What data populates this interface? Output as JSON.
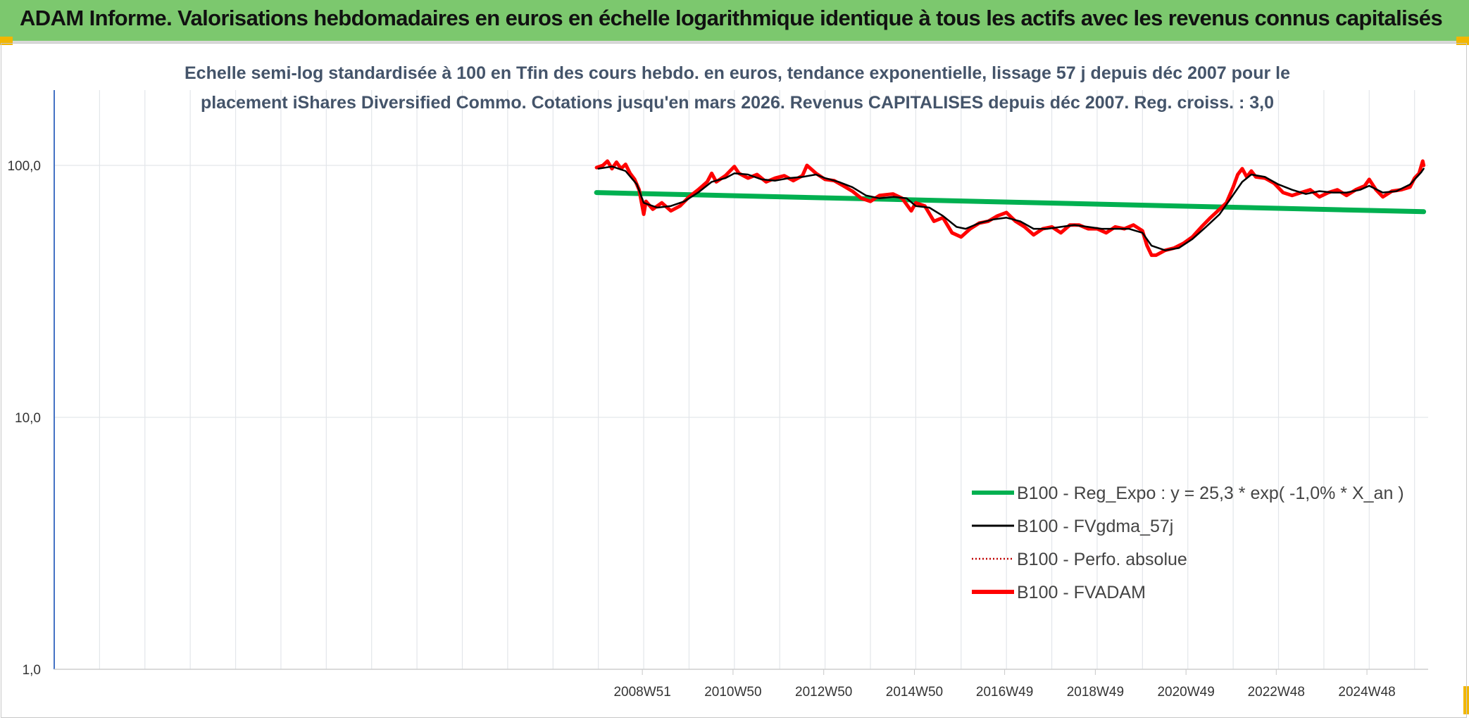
{
  "header": {
    "title": "ADAM Informe. Valorisations hebdomadaires en euros en échelle logarithmique identique à tous les actifs avec les revenus connus capitalisés"
  },
  "colors": {
    "banner": "#7cc86e",
    "corner_accent": "#f2b600",
    "reg_expo": "#00b050",
    "fvgdma": "#000000",
    "perfo": "#c00000",
    "fvadam": "#ff0000"
  },
  "chart_data": {
    "type": "line",
    "title_lines": [
      "Echelle semi-log standardisée à 100 en Tfin des cours hebdo. en euros, tendance exponentielle, lissage 57 j depuis déc 2007 pour le",
      "placement iShares Diversified Commo. Cotations jusqu'en mars 2026. Revenus CAPITALISES depuis déc 2007. Reg. croiss. : 3,0"
    ],
    "y_scale": "log",
    "ylim": [
      1,
      200
    ],
    "y_ticks": [
      "100,0",
      "10,0",
      "1,0"
    ],
    "y_tick_values": [
      100,
      10,
      1
    ],
    "x_range": [
      1996.0,
      2026.3
    ],
    "x_tick_labels": [
      "2008W51",
      "2010W50",
      "2012W50",
      "2014W50",
      "2016W49",
      "2018W49",
      "2020W49",
      "2022W48",
      "2024W48"
    ],
    "x_tick_values": [
      2008.97,
      2010.97,
      2012.97,
      2014.97,
      2016.96,
      2018.96,
      2020.96,
      2022.95,
      2024.95
    ],
    "x_gridlines": [
      1997,
      1998,
      1999,
      2000,
      2001,
      2002,
      2003,
      2004,
      2005,
      2006,
      2007,
      2008,
      2009,
      2010,
      2011,
      2012,
      2013,
      2014,
      2015,
      2016,
      2017,
      2018,
      2019,
      2020,
      2021,
      2022,
      2023,
      2024,
      2025,
      2026
    ],
    "grid": true,
    "legend_position": "bottom-right",
    "series": [
      {
        "name": "B100 - Reg_Expo : y = 25,3 * exp( -1,0% *  X_an )",
        "style": "thick-solid",
        "points": [
          [
            2007.96,
            78.0
          ],
          [
            2026.2,
            65.5
          ]
        ]
      },
      {
        "name": "B100 - FVgdma_57j",
        "style": "thin-solid",
        "points": [
          [
            2008.0,
            97
          ],
          [
            2008.3,
            99
          ],
          [
            2008.6,
            95
          ],
          [
            2008.85,
            84
          ],
          [
            2009.0,
            71
          ],
          [
            2009.3,
            68
          ],
          [
            2009.6,
            69
          ],
          [
            2009.9,
            72
          ],
          [
            2010.2,
            78
          ],
          [
            2010.5,
            86
          ],
          [
            2010.8,
            89
          ],
          [
            2011.0,
            93
          ],
          [
            2011.3,
            92
          ],
          [
            2011.6,
            88
          ],
          [
            2011.9,
            87
          ],
          [
            2012.2,
            89
          ],
          [
            2012.5,
            90
          ],
          [
            2012.8,
            92
          ],
          [
            2013.0,
            89
          ],
          [
            2013.3,
            86
          ],
          [
            2013.6,
            82
          ],
          [
            2013.9,
            76
          ],
          [
            2014.2,
            74
          ],
          [
            2014.5,
            75
          ],
          [
            2014.8,
            74
          ],
          [
            2015.0,
            69
          ],
          [
            2015.3,
            68
          ],
          [
            2015.6,
            63
          ],
          [
            2015.9,
            57
          ],
          [
            2016.1,
            56
          ],
          [
            2016.4,
            59
          ],
          [
            2016.7,
            61
          ],
          [
            2017.0,
            62
          ],
          [
            2017.3,
            60
          ],
          [
            2017.6,
            56
          ],
          [
            2017.9,
            56
          ],
          [
            2018.2,
            57
          ],
          [
            2018.5,
            58
          ],
          [
            2018.8,
            57
          ],
          [
            2019.1,
            56
          ],
          [
            2019.4,
            56
          ],
          [
            2019.7,
            56
          ],
          [
            2020.0,
            54
          ],
          [
            2020.2,
            48
          ],
          [
            2020.5,
            46
          ],
          [
            2020.8,
            47
          ],
          [
            2021.1,
            51
          ],
          [
            2021.4,
            57
          ],
          [
            2021.7,
            64
          ],
          [
            2021.9,
            72
          ],
          [
            2022.2,
            86
          ],
          [
            2022.4,
            92
          ],
          [
            2022.7,
            90
          ],
          [
            2023.0,
            84
          ],
          [
            2023.3,
            80
          ],
          [
            2023.6,
            77
          ],
          [
            2023.9,
            79
          ],
          [
            2024.2,
            78
          ],
          [
            2024.5,
            78
          ],
          [
            2024.8,
            80
          ],
          [
            2025.0,
            83
          ],
          [
            2025.3,
            78
          ],
          [
            2025.6,
            79
          ],
          [
            2025.9,
            84
          ],
          [
            2026.15,
            94
          ],
          [
            2026.2,
            97
          ]
        ]
      },
      {
        "name": "B100 - Perfo. absolue",
        "style": "dotted",
        "points": []
      },
      {
        "name": "B100 - FVADAM",
        "style": "thick-solid",
        "points": [
          [
            2007.96,
            98
          ],
          [
            2008.1,
            100
          ],
          [
            2008.2,
            104
          ],
          [
            2008.3,
            97
          ],
          [
            2008.4,
            103
          ],
          [
            2008.5,
            97
          ],
          [
            2008.6,
            101
          ],
          [
            2008.7,
            93
          ],
          [
            2008.8,
            88
          ],
          [
            2008.9,
            80
          ],
          [
            2009.0,
            64
          ],
          [
            2009.05,
            72
          ],
          [
            2009.2,
            67
          ],
          [
            2009.4,
            71
          ],
          [
            2009.6,
            66
          ],
          [
            2009.8,
            69
          ],
          [
            2010.0,
            75
          ],
          [
            2010.2,
            80
          ],
          [
            2010.4,
            86
          ],
          [
            2010.5,
            93
          ],
          [
            2010.6,
            86
          ],
          [
            2010.8,
            91
          ],
          [
            2011.0,
            99
          ],
          [
            2011.1,
            93
          ],
          [
            2011.3,
            89
          ],
          [
            2011.5,
            92
          ],
          [
            2011.7,
            86
          ],
          [
            2011.9,
            89
          ],
          [
            2012.1,
            91
          ],
          [
            2012.3,
            87
          ],
          [
            2012.5,
            91
          ],
          [
            2012.6,
            100
          ],
          [
            2012.8,
            93
          ],
          [
            2013.0,
            88
          ],
          [
            2013.2,
            87
          ],
          [
            2013.4,
            83
          ],
          [
            2013.6,
            79
          ],
          [
            2013.8,
            74
          ],
          [
            2014.0,
            72
          ],
          [
            2014.2,
            76
          ],
          [
            2014.5,
            77
          ],
          [
            2014.7,
            74
          ],
          [
            2014.9,
            66
          ],
          [
            2015.0,
            71
          ],
          [
            2015.2,
            69
          ],
          [
            2015.4,
            60
          ],
          [
            2015.6,
            62
          ],
          [
            2015.8,
            54
          ],
          [
            2016.0,
            52
          ],
          [
            2016.2,
            56
          ],
          [
            2016.4,
            59
          ],
          [
            2016.6,
            60
          ],
          [
            2016.8,
            63
          ],
          [
            2017.0,
            65
          ],
          [
            2017.2,
            60
          ],
          [
            2017.4,
            57
          ],
          [
            2017.6,
            53
          ],
          [
            2017.8,
            56
          ],
          [
            2018.0,
            57
          ],
          [
            2018.2,
            54
          ],
          [
            2018.4,
            58
          ],
          [
            2018.6,
            58
          ],
          [
            2018.8,
            56
          ],
          [
            2019.0,
            56
          ],
          [
            2019.2,
            54
          ],
          [
            2019.4,
            57
          ],
          [
            2019.6,
            56
          ],
          [
            2019.8,
            58
          ],
          [
            2020.0,
            55
          ],
          [
            2020.1,
            48
          ],
          [
            2020.2,
            44
          ],
          [
            2020.3,
            44
          ],
          [
            2020.5,
            46
          ],
          [
            2020.7,
            47
          ],
          [
            2020.9,
            49
          ],
          [
            2021.1,
            52
          ],
          [
            2021.3,
            57
          ],
          [
            2021.5,
            62
          ],
          [
            2021.7,
            67
          ],
          [
            2021.85,
            71
          ],
          [
            2022.0,
            82
          ],
          [
            2022.1,
            92
          ],
          [
            2022.2,
            97
          ],
          [
            2022.3,
            90
          ],
          [
            2022.4,
            95
          ],
          [
            2022.5,
            90
          ],
          [
            2022.7,
            89
          ],
          [
            2022.9,
            85
          ],
          [
            2023.1,
            78
          ],
          [
            2023.3,
            76
          ],
          [
            2023.5,
            78
          ],
          [
            2023.7,
            80
          ],
          [
            2023.9,
            75
          ],
          [
            2024.1,
            78
          ],
          [
            2024.3,
            80
          ],
          [
            2024.5,
            76
          ],
          [
            2024.7,
            80
          ],
          [
            2024.9,
            83
          ],
          [
            2025.0,
            88
          ],
          [
            2025.15,
            80
          ],
          [
            2025.3,
            75
          ],
          [
            2025.5,
            79
          ],
          [
            2025.7,
            80
          ],
          [
            2025.9,
            82
          ],
          [
            2026.0,
            89
          ],
          [
            2026.1,
            93
          ],
          [
            2026.18,
            104
          ],
          [
            2026.2,
            100
          ]
        ]
      }
    ]
  }
}
